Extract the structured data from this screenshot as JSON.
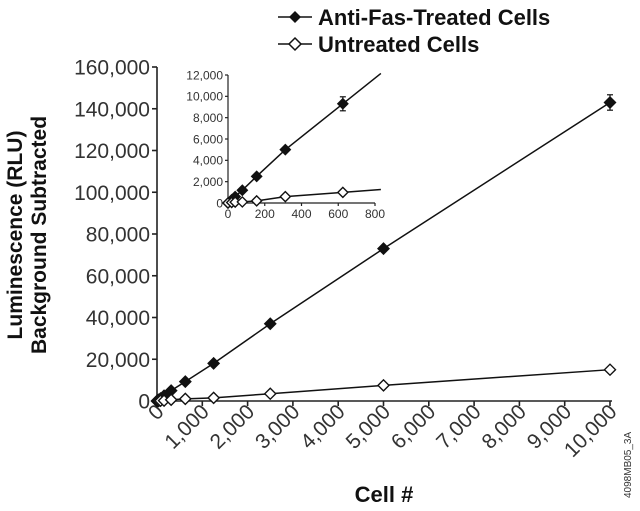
{
  "chart_data": [
    {
      "type": "line",
      "xlabel": "Cell #",
      "ylabel": [
        "Luminescence (RLU)",
        "Background Subtracted"
      ],
      "xlim": [
        0,
        10000
      ],
      "ylim": [
        0,
        160000
      ],
      "xticks": [
        "0",
        "1,000",
        "2,000",
        "3,000",
        "4,000",
        "5,000",
        "6,000",
        "7,000",
        "8,000",
        "9,000",
        "10,000"
      ],
      "yticks": [
        "0",
        "20,000",
        "40,000",
        "60,000",
        "80,000",
        "100,000",
        "120,000",
        "140,000",
        "160,000"
      ],
      "grid": false,
      "legend": "top",
      "series": [
        {
          "name": "Anti-Fas-Treated Cells",
          "marker": "filled-diamond",
          "x": [
            0,
            20,
            39,
            78,
            156,
            312,
            625,
            1250,
            2500,
            5000,
            10000
          ],
          "y": [
            0,
            300,
            600,
            1200,
            2500,
            5000,
            9300,
            18000,
            37000,
            73000,
            143000
          ]
        },
        {
          "name": "Untreated Cells",
          "marker": "open-diamond",
          "x": [
            0,
            20,
            39,
            78,
            156,
            312,
            625,
            1250,
            2500,
            5000,
            10000
          ],
          "y": [
            0,
            50,
            80,
            100,
            200,
            600,
            1000,
            1500,
            3500,
            7500,
            15000
          ]
        }
      ]
    },
    {
      "type": "line",
      "xlim": [
        0,
        800
      ],
      "ylim": [
        0,
        12000
      ],
      "xticks": [
        "0",
        "200",
        "400",
        "600",
        "800"
      ],
      "yticks": [
        "0",
        "2,000",
        "4,000",
        "6,000",
        "8,000",
        "10,000",
        "12,000"
      ],
      "grid": false,
      "series": [
        {
          "marker": "filled-diamond",
          "x": [
            0,
            20,
            39,
            78,
            156,
            312,
            625
          ],
          "y": [
            0,
            300,
            600,
            1200,
            2500,
            5000,
            9300
          ]
        },
        {
          "marker": "open-diamond",
          "x": [
            0,
            20,
            39,
            78,
            156,
            312,
            625
          ],
          "y": [
            0,
            50,
            80,
            100,
            200,
            600,
            1000
          ]
        }
      ]
    }
  ],
  "figure_id": "4098MB05_3A"
}
